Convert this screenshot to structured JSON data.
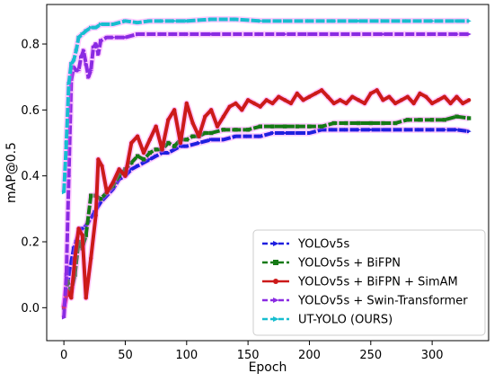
{
  "chart_data": {
    "type": "line",
    "title": "",
    "xlabel": "Epoch",
    "ylabel": "mAP@0.5",
    "xlim": [
      -14,
      346
    ],
    "ylim": [
      -0.1,
      0.92
    ],
    "xticks": [
      0,
      50,
      100,
      150,
      200,
      250,
      300
    ],
    "yticks": [
      0.0,
      0.2,
      0.4,
      0.6,
      0.8
    ],
    "ytick_labels": [
      "0.0",
      "0.2",
      "0.4",
      "0.6",
      "0.8"
    ],
    "grid": false,
    "legend_position": "bottom-right",
    "series": [
      {
        "name": "YOLOv5s",
        "color": "#1f1fdf",
        "linestyle": "dashed",
        "marker": "triangle-right",
        "points": [
          [
            0,
            0.0
          ],
          [
            2,
            0.05
          ],
          [
            5,
            0.12
          ],
          [
            8,
            0.18
          ],
          [
            10,
            0.2
          ],
          [
            13,
            0.24
          ],
          [
            16,
            0.24
          ],
          [
            20,
            0.26
          ],
          [
            25,
            0.29
          ],
          [
            30,
            0.32
          ],
          [
            35,
            0.34
          ],
          [
            40,
            0.36
          ],
          [
            45,
            0.39
          ],
          [
            50,
            0.4
          ],
          [
            55,
            0.42
          ],
          [
            60,
            0.43
          ],
          [
            65,
            0.44
          ],
          [
            70,
            0.45
          ],
          [
            75,
            0.46
          ],
          [
            80,
            0.47
          ],
          [
            85,
            0.47
          ],
          [
            90,
            0.48
          ],
          [
            95,
            0.49
          ],
          [
            100,
            0.49
          ],
          [
            110,
            0.5
          ],
          [
            120,
            0.51
          ],
          [
            130,
            0.51
          ],
          [
            140,
            0.52
          ],
          [
            150,
            0.52
          ],
          [
            160,
            0.52
          ],
          [
            170,
            0.53
          ],
          [
            180,
            0.53
          ],
          [
            190,
            0.53
          ],
          [
            200,
            0.53
          ],
          [
            210,
            0.54
          ],
          [
            220,
            0.54
          ],
          [
            230,
            0.54
          ],
          [
            240,
            0.54
          ],
          [
            250,
            0.54
          ],
          [
            260,
            0.54
          ],
          [
            270,
            0.54
          ],
          [
            280,
            0.54
          ],
          [
            290,
            0.54
          ],
          [
            300,
            0.54
          ],
          [
            310,
            0.54
          ],
          [
            320,
            0.54
          ],
          [
            330,
            0.535
          ]
        ]
      },
      {
        "name": "YOLOv5s + BiFPN",
        "color": "#157a15",
        "linestyle": "dashed",
        "marker": "square",
        "points": [
          [
            0,
            0.0
          ],
          [
            3,
            0.08
          ],
          [
            6,
            0.05
          ],
          [
            9,
            0.1
          ],
          [
            12,
            0.2
          ],
          [
            15,
            0.18
          ],
          [
            18,
            0.22
          ],
          [
            22,
            0.34
          ],
          [
            26,
            0.34
          ],
          [
            30,
            0.33
          ],
          [
            35,
            0.35
          ],
          [
            40,
            0.37
          ],
          [
            45,
            0.4
          ],
          [
            50,
            0.42
          ],
          [
            55,
            0.44
          ],
          [
            60,
            0.46
          ],
          [
            65,
            0.45
          ],
          [
            70,
            0.47
          ],
          [
            75,
            0.48
          ],
          [
            80,
            0.48
          ],
          [
            85,
            0.5
          ],
          [
            90,
            0.49
          ],
          [
            95,
            0.51
          ],
          [
            100,
            0.51
          ],
          [
            105,
            0.52
          ],
          [
            110,
            0.52
          ],
          [
            115,
            0.53
          ],
          [
            120,
            0.53
          ],
          [
            130,
            0.54
          ],
          [
            140,
            0.54
          ],
          [
            150,
            0.54
          ],
          [
            160,
            0.55
          ],
          [
            170,
            0.55
          ],
          [
            180,
            0.55
          ],
          [
            190,
            0.55
          ],
          [
            200,
            0.55
          ],
          [
            210,
            0.55
          ],
          [
            220,
            0.56
          ],
          [
            230,
            0.56
          ],
          [
            240,
            0.56
          ],
          [
            250,
            0.56
          ],
          [
            260,
            0.56
          ],
          [
            270,
            0.56
          ],
          [
            280,
            0.57
          ],
          [
            290,
            0.57
          ],
          [
            300,
            0.57
          ],
          [
            310,
            0.57
          ],
          [
            320,
            0.58
          ],
          [
            330,
            0.575
          ]
        ]
      },
      {
        "name": "YOLOv5s + BiFPN + SimAM",
        "color": "#cc1a1a",
        "linestyle": "solid",
        "marker": "circle",
        "points": [
          [
            0,
            0.0
          ],
          [
            3,
            0.05
          ],
          [
            6,
            0.03
          ],
          [
            9,
            0.15
          ],
          [
            12,
            0.24
          ],
          [
            15,
            0.22
          ],
          [
            18,
            0.03
          ],
          [
            22,
            0.15
          ],
          [
            26,
            0.28
          ],
          [
            28,
            0.45
          ],
          [
            31,
            0.43
          ],
          [
            35,
            0.35
          ],
          [
            40,
            0.38
          ],
          [
            45,
            0.42
          ],
          [
            50,
            0.4
          ],
          [
            55,
            0.5
          ],
          [
            60,
            0.52
          ],
          [
            65,
            0.47
          ],
          [
            70,
            0.51
          ],
          [
            75,
            0.55
          ],
          [
            80,
            0.48
          ],
          [
            85,
            0.57
          ],
          [
            90,
            0.6
          ],
          [
            95,
            0.5
          ],
          [
            100,
            0.62
          ],
          [
            105,
            0.56
          ],
          [
            110,
            0.52
          ],
          [
            115,
            0.58
          ],
          [
            120,
            0.6
          ],
          [
            125,
            0.55
          ],
          [
            130,
            0.58
          ],
          [
            135,
            0.61
          ],
          [
            140,
            0.62
          ],
          [
            145,
            0.6
          ],
          [
            150,
            0.63
          ],
          [
            155,
            0.62
          ],
          [
            160,
            0.61
          ],
          [
            165,
            0.63
          ],
          [
            170,
            0.62
          ],
          [
            175,
            0.64
          ],
          [
            180,
            0.63
          ],
          [
            185,
            0.62
          ],
          [
            190,
            0.65
          ],
          [
            195,
            0.63
          ],
          [
            200,
            0.64
          ],
          [
            205,
            0.65
          ],
          [
            210,
            0.66
          ],
          [
            215,
            0.64
          ],
          [
            220,
            0.62
          ],
          [
            225,
            0.63
          ],
          [
            230,
            0.62
          ],
          [
            235,
            0.64
          ],
          [
            240,
            0.63
          ],
          [
            245,
            0.62
          ],
          [
            250,
            0.65
          ],
          [
            255,
            0.66
          ],
          [
            260,
            0.63
          ],
          [
            265,
            0.64
          ],
          [
            270,
            0.62
          ],
          [
            275,
            0.63
          ],
          [
            280,
            0.64
          ],
          [
            285,
            0.62
          ],
          [
            290,
            0.65
          ],
          [
            295,
            0.64
          ],
          [
            300,
            0.62
          ],
          [
            305,
            0.63
          ],
          [
            310,
            0.64
          ],
          [
            315,
            0.62
          ],
          [
            320,
            0.64
          ],
          [
            325,
            0.62
          ],
          [
            330,
            0.63
          ]
        ]
      },
      {
        "name": "YOLOv5s + Swin-Transformer",
        "color": "#8a2be2",
        "linestyle": "dashed",
        "marker": "triangle-right",
        "points": [
          [
            0,
            -0.03
          ],
          [
            2,
            0.1
          ],
          [
            4,
            0.4
          ],
          [
            6,
            0.69
          ],
          [
            8,
            0.73
          ],
          [
            10,
            0.72
          ],
          [
            12,
            0.72
          ],
          [
            14,
            0.76
          ],
          [
            16,
            0.78
          ],
          [
            18,
            0.74
          ],
          [
            20,
            0.7
          ],
          [
            22,
            0.72
          ],
          [
            24,
            0.79
          ],
          [
            26,
            0.8
          ],
          [
            28,
            0.77
          ],
          [
            30,
            0.81
          ],
          [
            35,
            0.82
          ],
          [
            40,
            0.82
          ],
          [
            45,
            0.82
          ],
          [
            50,
            0.82
          ],
          [
            60,
            0.83
          ],
          [
            70,
            0.83
          ],
          [
            80,
            0.83
          ],
          [
            90,
            0.83
          ],
          [
            100,
            0.83
          ],
          [
            120,
            0.83
          ],
          [
            140,
            0.83
          ],
          [
            160,
            0.83
          ],
          [
            180,
            0.83
          ],
          [
            200,
            0.83
          ],
          [
            220,
            0.83
          ],
          [
            240,
            0.83
          ],
          [
            260,
            0.83
          ],
          [
            280,
            0.83
          ],
          [
            300,
            0.83
          ],
          [
            320,
            0.83
          ],
          [
            330,
            0.83
          ]
        ]
      },
      {
        "name": "UT-YOLO (OURS)",
        "color": "#17becf",
        "linestyle": "dashed",
        "marker": "triangle-right",
        "points": [
          [
            0,
            0.35
          ],
          [
            2,
            0.5
          ],
          [
            4,
            0.68
          ],
          [
            6,
            0.74
          ],
          [
            8,
            0.75
          ],
          [
            10,
            0.78
          ],
          [
            12,
            0.82
          ],
          [
            15,
            0.83
          ],
          [
            18,
            0.84
          ],
          [
            22,
            0.85
          ],
          [
            26,
            0.85
          ],
          [
            30,
            0.86
          ],
          [
            40,
            0.86
          ],
          [
            50,
            0.87
          ],
          [
            60,
            0.865
          ],
          [
            70,
            0.87
          ],
          [
            80,
            0.87
          ],
          [
            90,
            0.87
          ],
          [
            100,
            0.87
          ],
          [
            120,
            0.875
          ],
          [
            140,
            0.875
          ],
          [
            160,
            0.87
          ],
          [
            180,
            0.87
          ],
          [
            200,
            0.87
          ],
          [
            220,
            0.87
          ],
          [
            240,
            0.87
          ],
          [
            260,
            0.87
          ],
          [
            280,
            0.87
          ],
          [
            300,
            0.87
          ],
          [
            320,
            0.87
          ],
          [
            330,
            0.87
          ]
        ]
      }
    ]
  }
}
